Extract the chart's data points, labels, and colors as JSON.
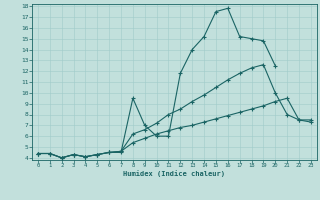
{
  "xlabel": "Humidex (Indice chaleur)",
  "background_color": "#c2e0dc",
  "line_color": "#1a6464",
  "grid_color": "#a0ccca",
  "xlim": [
    -0.5,
    23.5
  ],
  "ylim": [
    3.8,
    18.2
  ],
  "xticks": [
    0,
    1,
    2,
    3,
    4,
    5,
    6,
    7,
    8,
    9,
    10,
    11,
    12,
    13,
    14,
    15,
    16,
    17,
    18,
    19,
    20,
    21,
    22,
    23
  ],
  "yticks": [
    4,
    5,
    6,
    7,
    8,
    9,
    10,
    11,
    12,
    13,
    14,
    15,
    16,
    17,
    18
  ],
  "series": [
    {
      "x": [
        0,
        1,
        2,
        3,
        4,
        5,
        6,
        7,
        8,
        9,
        10,
        11,
        12,
        13,
        14,
        15,
        16,
        17,
        18,
        19,
        20
      ],
      "y": [
        4.4,
        4.4,
        4.0,
        4.3,
        4.1,
        4.3,
        4.5,
        4.5,
        9.5,
        7.0,
        6.0,
        6.0,
        11.8,
        14.0,
        15.2,
        17.5,
        17.8,
        15.2,
        15.0,
        14.8,
        12.5
      ]
    },
    {
      "x": [
        0,
        1,
        2,
        3,
        4,
        5,
        6,
        7,
        8,
        9,
        10,
        11,
        12,
        13,
        14,
        15,
        16,
        17,
        18,
        19,
        20,
        21,
        22,
        23
      ],
      "y": [
        4.4,
        4.4,
        4.0,
        4.3,
        4.1,
        4.3,
        4.5,
        4.6,
        6.2,
        6.6,
        7.2,
        8.0,
        8.5,
        9.2,
        9.8,
        10.5,
        11.2,
        11.8,
        12.3,
        12.6,
        10.0,
        8.0,
        7.5,
        7.3
      ]
    },
    {
      "x": [
        0,
        1,
        2,
        3,
        4,
        5,
        6,
        7,
        8,
        9,
        10,
        11,
        12,
        13,
        14,
        15,
        16,
        17,
        18,
        19,
        20,
        21,
        22,
        23
      ],
      "y": [
        4.4,
        4.4,
        4.0,
        4.3,
        4.1,
        4.3,
        4.5,
        4.6,
        5.4,
        5.8,
        6.2,
        6.5,
        6.8,
        7.0,
        7.3,
        7.6,
        7.9,
        8.2,
        8.5,
        8.8,
        9.2,
        9.5,
        7.5,
        7.5
      ]
    }
  ]
}
